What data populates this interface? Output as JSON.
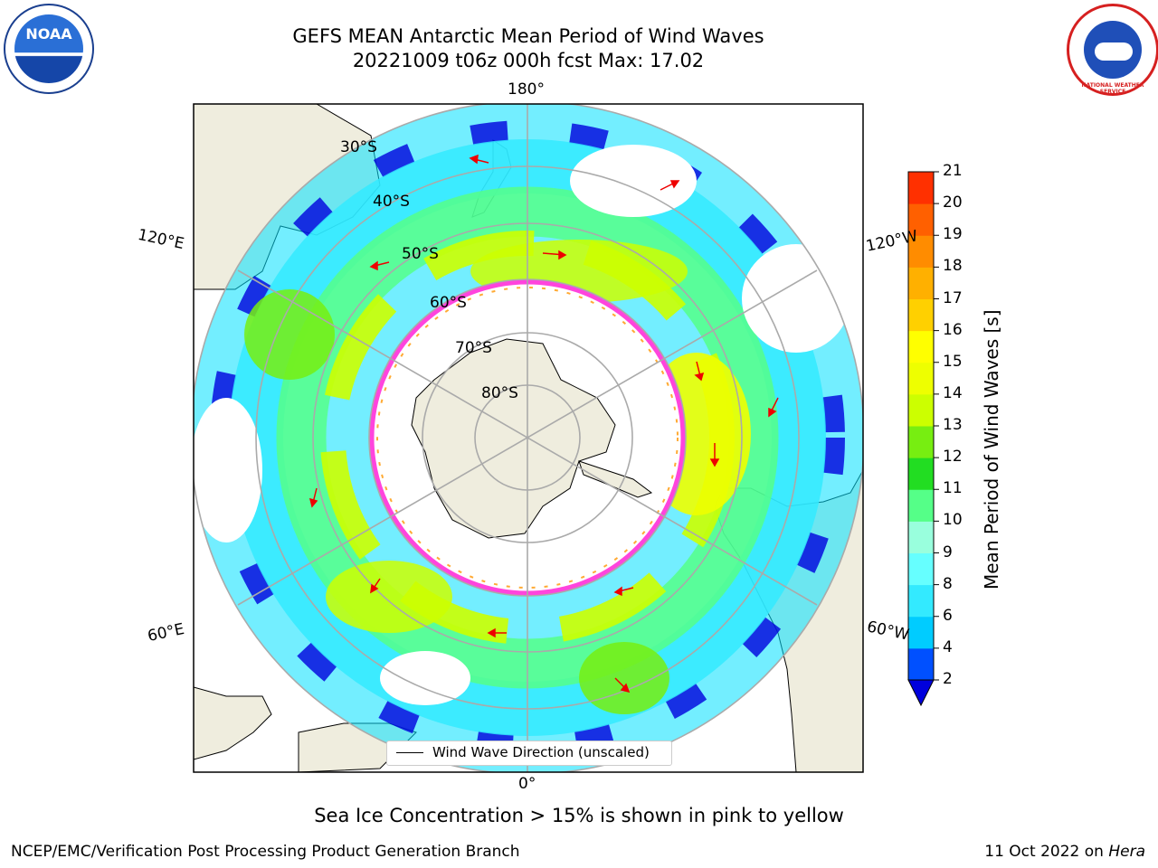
{
  "title_line1": "GEFS MEAN Antarctic Mean Period of Wind Waves",
  "title_line2": "20221009 t06z 000h fcst   Max: 17.02",
  "longitude_labels": {
    "top": "180°",
    "bottom": "0°",
    "upper_left": "120°E",
    "lower_left": "60°E",
    "upper_right": "120°W",
    "lower_right": "60°W"
  },
  "latitude_labels": [
    "30°S",
    "40°S",
    "50°S",
    "60°S",
    "70°S",
    "80°S"
  ],
  "legend": {
    "wind_wave_direction": "Wind Wave Direction (unscaled)"
  },
  "colorbar": {
    "label": "Mean Period of Wind Waves [s]",
    "ticks": [
      "2",
      "4",
      "6",
      "8",
      "9",
      "10",
      "11",
      "12",
      "13",
      "14",
      "15",
      "16",
      "17",
      "18",
      "19",
      "20",
      "21"
    ],
    "colors": [
      "#0050ff",
      "#00ccff",
      "#33eaff",
      "#66ffff",
      "#99ffdd",
      "#55ff88",
      "#22dd22",
      "#77ee11",
      "#ccff00",
      "#eeff00",
      "#ffff00",
      "#ffd000",
      "#ffb000",
      "#ff8c00",
      "#ff6000",
      "#ff3000",
      "#ff0000"
    ],
    "under_color": "#0000dd"
  },
  "caption": "Sea Ice Concentration > 15% is shown in pink to yellow",
  "credit_left": "NCEP/EMC/Verification Post Processing Product Generation Branch",
  "credit_right_date": "11 Oct 2022 on",
  "credit_right_host": "Hera",
  "logos": {
    "noaa_text": "NOAA",
    "nws_text": "NATIONAL WEATHER SERVICE"
  }
}
